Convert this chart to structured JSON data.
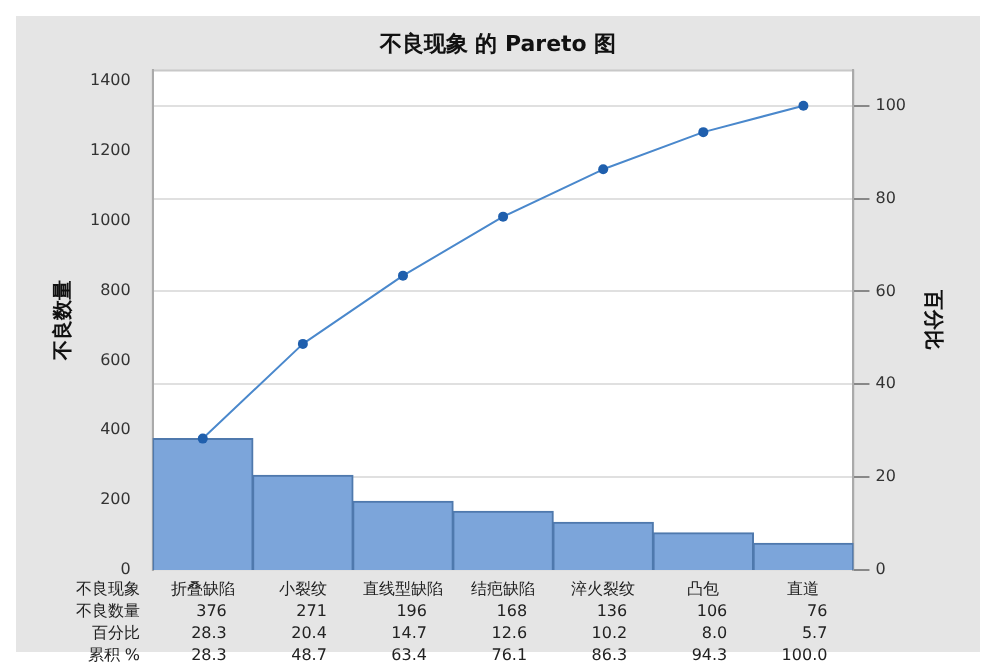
{
  "chart_data": {
    "type": "bar",
    "title": "不良现象 的 Pareto 图",
    "xlabel": "不良现象",
    "ylabel": "不良数量",
    "y2label": "百分比",
    "categories": [
      "折叠缺陷",
      "小裂纹",
      "直线型缺陷",
      "结疤缺陷",
      "淬火裂纹",
      "凸包",
      "直道"
    ],
    "series": [
      {
        "color": "#7ca5da",
        "values": [
          376,
          271,
          196,
          168,
          136,
          106,
          76
        ]
      },
      {
        "type": "line",
        "axis": "y2",
        "color": "#4a88cc",
        "marker": "circle",
        "values": [
          28.3,
          48.7,
          63.4,
          76.1,
          86.3,
          94.3,
          100.0
        ]
      }
    ],
    "annotations": [
      "不良数量",
      "376",
      "271",
      "196",
      "168",
      "136",
      "106",
      "76",
      "百分比",
      "28.3",
      "20.4",
      "14.7",
      "12.6",
      "10.2",
      "8.0",
      "5.7",
      "累积 %",
      "28.3",
      "48.7",
      "63.4",
      "76.1",
      "86.3",
      "94.3",
      "100.0"
    ],
    "ylim": [
      0,
      1430
    ],
    "yticks": [
      0,
      200,
      400,
      600,
      800,
      1000,
      1200,
      1400
    ],
    "y2lim": [
      0,
      107.6
    ],
    "y2ticks": [
      0,
      20,
      40,
      60,
      80,
      100
    ],
    "grid": "y2",
    "legend": false
  }
}
